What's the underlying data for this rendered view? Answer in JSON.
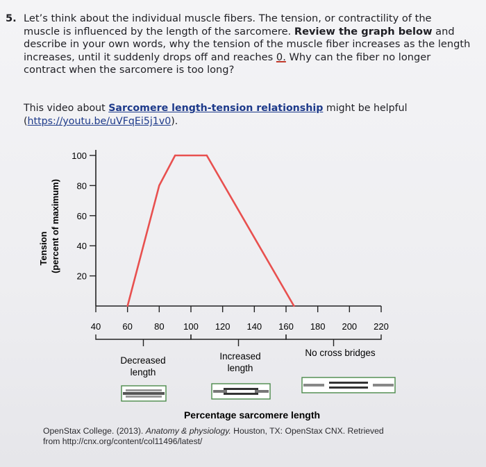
{
  "question": {
    "number": "5.",
    "text_1": "Let’s think about the individual muscle fibers. The tension, or contractility of the muscle is influenced by the length of the sarcomere. ",
    "bold": "Review the graph below",
    "text_2": " and describe in your own words, why the tension of the muscle fiber increases as the length increases, until it suddenly drops off and reaches ",
    "zero": "0.",
    "text_3": " Why can the fiber no longer contract when the sarcomere is too long?"
  },
  "video": {
    "prefix": "This video about ",
    "link_text": "Sarcomere length-tension relationship",
    "suffix": " might be helpful",
    "url_open": "(",
    "url": "https://youtu.be/uVFqEi5j1v0",
    "url_close": ")."
  },
  "chart_data": {
    "type": "line",
    "title": "",
    "xlabel": "Percentage sarcomere length",
    "ylabel_line1": "Tension",
    "ylabel_line2": "(percent of maximum)",
    "x": [
      60,
      80,
      90,
      110,
      165
    ],
    "y": [
      0,
      80,
      100,
      100,
      0
    ],
    "xlim": [
      40,
      220
    ],
    "ylim": [
      0,
      100
    ],
    "x_ticks": [
      "40",
      "60",
      "80",
      "100",
      "120",
      "140",
      "160",
      "180",
      "200",
      "220"
    ],
    "y_ticks": [
      "20",
      "40",
      "60",
      "80",
      "100"
    ],
    "line_color": "#e8504f",
    "regions": [
      {
        "label_line1": "Decreased",
        "label_line2": "length"
      },
      {
        "label_line1": "Increased",
        "label_line2": "length"
      },
      {
        "label_line1": "No cross bridges",
        "label_line2": ""
      }
    ]
  },
  "citation": {
    "text_1": "OpenStax College. (2013). ",
    "italic": "Anatomy & physiology.",
    "text_2": " Houston, TX: OpenStax CNX. Retrieved",
    "line_2": "from http://cnx.org/content/col11496/latest/"
  }
}
